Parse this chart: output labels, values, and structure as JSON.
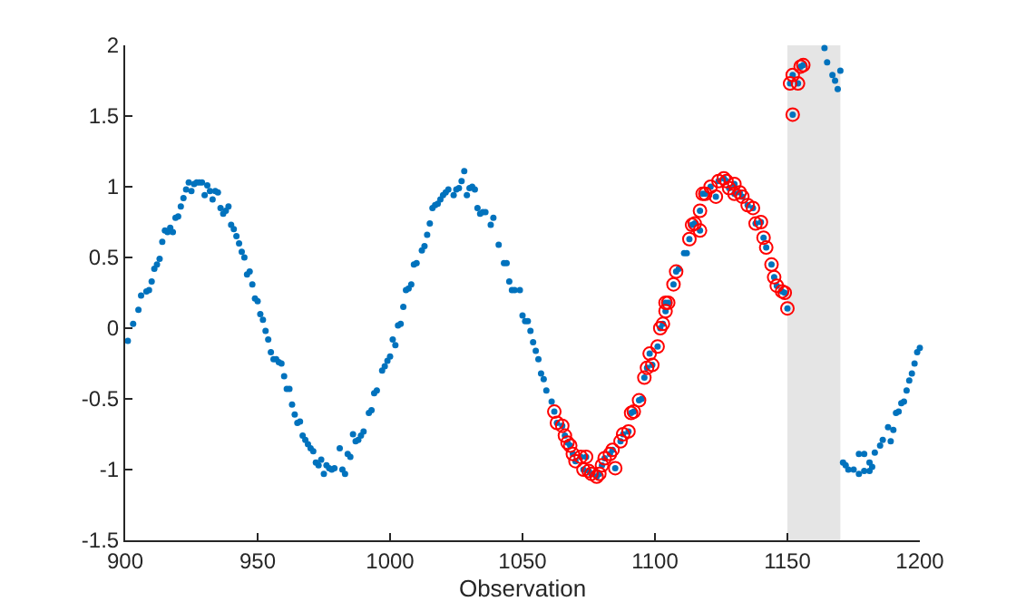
{
  "chart_data": {
    "type": "scatter",
    "xlabel": "Observation",
    "xlim": [
      900,
      1200
    ],
    "xticks": [
      900,
      950,
      1000,
      1050,
      1100,
      1150,
      1200
    ],
    "ylim": [
      -1.5,
      2
    ],
    "yticks": [
      -1.5,
      -1,
      -0.5,
      0,
      0.5,
      1,
      1.5,
      2
    ],
    "marker": "circle",
    "bands": [
      {
        "axis": "x",
        "from": 1150,
        "to": 1170,
        "color": "#e5e5e5"
      }
    ],
    "series": [
      {
        "color": "#0072bd",
        "x": [
          901,
          903,
          905,
          906,
          908,
          909,
          910,
          911,
          912,
          913,
          914,
          915,
          916,
          917,
          918,
          919,
          920,
          921,
          922,
          923,
          924,
          925,
          926,
          927,
          928,
          929,
          930,
          931,
          932,
          933,
          934,
          935,
          936,
          937,
          938,
          939,
          940,
          941,
          942,
          943,
          944,
          945,
          946,
          947,
          948,
          949,
          950,
          951,
          952,
          953,
          954,
          955,
          956,
          957,
          958,
          959,
          960,
          961,
          962,
          963,
          964,
          965,
          966,
          967,
          968,
          969,
          970,
          971,
          972,
          973,
          974,
          975,
          976,
          977,
          978,
          979,
          981,
          982,
          983,
          984,
          985,
          986,
          987,
          988,
          989,
          990,
          992,
          993,
          994,
          995,
          997,
          998,
          999,
          1000,
          1001,
          1002,
          1003,
          1004,
          1005,
          1006,
          1007,
          1008,
          1009,
          1010,
          1012,
          1013,
          1014,
          1015,
          1016,
          1017,
          1018,
          1019,
          1020,
          1021,
          1022,
          1024,
          1025,
          1026,
          1027,
          1028,
          1029,
          1030,
          1031,
          1032,
          1033,
          1034,
          1035,
          1036,
          1038,
          1039,
          1041,
          1043,
          1044,
          1045,
          1046,
          1047,
          1049,
          1050,
          1051,
          1052,
          1053,
          1054,
          1055,
          1056,
          1057,
          1058,
          1059,
          1061,
          1062,
          1063,
          1065,
          1066,
          1067,
          1068,
          1069,
          1070,
          1072,
          1073,
          1074,
          1075,
          1076,
          1078,
          1079,
          1080,
          1081,
          1083,
          1084,
          1085,
          1087,
          1088,
          1090,
          1091,
          1092,
          1094,
          1095,
          1096,
          1097,
          1098,
          1099,
          1101,
          1102,
          1103,
          1104,
          1104,
          1105,
          1107,
          1108,
          1109,
          1111,
          1112,
          1113,
          1114,
          1115,
          1117,
          1117,
          1118,
          1119,
          1121,
          1123,
          1124,
          1126,
          1127,
          1128,
          1130,
          1130,
          1132,
          1133,
          1135,
          1137,
          1138,
          1140,
          1141,
          1142,
          1144,
          1145,
          1146,
          1148,
          1149,
          1150,
          1151,
          1152,
          1152,
          1154,
          1155,
          1156,
          1164,
          1165,
          1167,
          1168,
          1169,
          1170,
          1171,
          1172,
          1173,
          1175,
          1177,
          1177,
          1179,
          1179,
          1181,
          1181,
          1182,
          1183,
          1185,
          1186,
          1188,
          1189,
          1190,
          1191,
          1192,
          1193,
          1194,
          1195,
          1196,
          1197,
          1198,
          1199,
          1200
        ],
        "values": [
          -0.09,
          0.03,
          0.13,
          0.23,
          0.26,
          0.27,
          0.33,
          0.42,
          0.45,
          0.49,
          0.61,
          0.69,
          0.68,
          0.71,
          0.68,
          0.78,
          0.79,
          0.86,
          0.92,
          0.98,
          1.03,
          0.97,
          1.02,
          1.03,
          1.03,
          1.03,
          0.94,
          1.01,
          0.97,
          0.91,
          0.97,
          0.96,
          0.85,
          0.81,
          0.83,
          0.86,
          0.73,
          0.7,
          0.65,
          0.6,
          0.54,
          0.5,
          0.38,
          0.4,
          0.31,
          0.21,
          0.19,
          0.1,
          0.06,
          -0.02,
          -0.08,
          -0.17,
          -0.22,
          -0.22,
          -0.24,
          -0.25,
          -0.34,
          -0.43,
          -0.43,
          -0.54,
          -0.61,
          -0.67,
          -0.66,
          -0.76,
          -0.79,
          -0.82,
          -0.85,
          -0.87,
          -0.95,
          -0.97,
          -0.93,
          -1.03,
          -0.97,
          -0.99,
          -1,
          -0.99,
          -0.85,
          -1,
          -1.03,
          -0.89,
          -0.91,
          -0.75,
          -0.8,
          -0.79,
          -0.76,
          -0.73,
          -0.6,
          -0.58,
          -0.46,
          -0.44,
          -0.3,
          -0.27,
          -0.23,
          -0.2,
          -0.08,
          -0.12,
          0.02,
          0.03,
          0.15,
          0.27,
          0.28,
          0.31,
          0.45,
          0.46,
          0.55,
          0.58,
          0.66,
          0.74,
          0.85,
          0.87,
          0.88,
          0.91,
          0.94,
          0.96,
          0.98,
          0.94,
          0.98,
          0.99,
          1.04,
          1.11,
          0.94,
          0.99,
          1,
          0.98,
          0.85,
          0.81,
          0.82,
          0.82,
          0.73,
          0.78,
          0.59,
          0.46,
          0.46,
          0.33,
          0.27,
          0.27,
          0.27,
          0.09,
          0.05,
          0.05,
          -0.02,
          -0.1,
          -0.16,
          -0.22,
          -0.32,
          -0.36,
          -0.44,
          -0.52,
          -0.59,
          -0.67,
          -0.69,
          -0.76,
          -0.81,
          -0.83,
          -0.89,
          -0.94,
          -0.91,
          -1,
          -0.91,
          -1.01,
          -1.03,
          -1.05,
          -1.03,
          -0.97,
          -0.92,
          -0.89,
          -0.86,
          -0.99,
          -0.8,
          -0.75,
          -0.73,
          -0.6,
          -0.59,
          -0.51,
          -0.5,
          -0.35,
          -0.28,
          -0.18,
          -0.26,
          -0.13,
          0,
          0.03,
          0.18,
          0.12,
          0.18,
          0.31,
          0.4,
          0.42,
          0.53,
          0.53,
          0.63,
          0.73,
          0.74,
          0.69,
          0.83,
          0.95,
          0.95,
          1,
          0.93,
          1.04,
          1.06,
          1.04,
          0.99,
          1.02,
          0.95,
          0.96,
          0.93,
          0.87,
          0.85,
          0.74,
          0.75,
          0.64,
          0.57,
          0.45,
          0.36,
          0.3,
          0.26,
          0.25,
          0.14,
          1.73,
          1.51,
          1.79,
          1.73,
          1.85,
          1.86,
          1.98,
          1.88,
          1.79,
          1.75,
          1.69,
          1.82,
          -0.95,
          -0.97,
          -1,
          -1,
          -1.03,
          -0.89,
          -1.01,
          -0.89,
          -1.01,
          -0.95,
          -0.98,
          -0.88,
          -0.83,
          -0.79,
          -0.7,
          -0.8,
          -0.72,
          -0.6,
          -0.59,
          -0.53,
          -0.52,
          -0.44,
          -0.37,
          -0.32,
          -0.25,
          -0.17,
          -0.14
        ]
      },
      {
        "color": "#ff0000",
        "x": [
          1062,
          1063,
          1065,
          1066,
          1067,
          1068,
          1069,
          1070,
          1072,
          1073,
          1074,
          1075,
          1076,
          1078,
          1079,
          1080,
          1081,
          1083,
          1084,
          1085,
          1087,
          1088,
          1090,
          1091,
          1092,
          1094,
          1096,
          1097,
          1098,
          1099,
          1101,
          1102,
          1103,
          1104,
          1104,
          1105,
          1107,
          1108,
          1113,
          1114,
          1115,
          1117,
          1117,
          1118,
          1119,
          1121,
          1123,
          1124,
          1126,
          1127,
          1128,
          1130,
          1130,
          1132,
          1133,
          1135,
          1137,
          1138,
          1140,
          1141,
          1142,
          1144,
          1145,
          1146,
          1148,
          1149,
          1150,
          1151,
          1152,
          1152,
          1154,
          1155,
          1156
        ],
        "values": [
          -0.59,
          -0.67,
          -0.69,
          -0.76,
          -0.81,
          -0.83,
          -0.89,
          -0.94,
          -0.91,
          -1,
          -0.91,
          -1.01,
          -1.03,
          -1.05,
          -1.03,
          -0.97,
          -0.92,
          -0.89,
          -0.86,
          -0.99,
          -0.8,
          -0.75,
          -0.73,
          -0.6,
          -0.59,
          -0.51,
          -0.35,
          -0.28,
          -0.18,
          -0.26,
          -0.13,
          0,
          0.03,
          0.18,
          0.12,
          0.18,
          0.31,
          0.4,
          0.63,
          0.73,
          0.74,
          0.69,
          0.83,
          0.95,
          0.95,
          1,
          0.93,
          1.04,
          1.06,
          1.04,
          0.99,
          1.02,
          0.95,
          0.96,
          0.93,
          0.87,
          0.85,
          0.74,
          0.75,
          0.64,
          0.57,
          0.45,
          0.36,
          0.3,
          0.26,
          0.25,
          0.14,
          1.73,
          1.51,
          1.79,
          1.73,
          1.85,
          1.86
        ]
      }
    ]
  }
}
